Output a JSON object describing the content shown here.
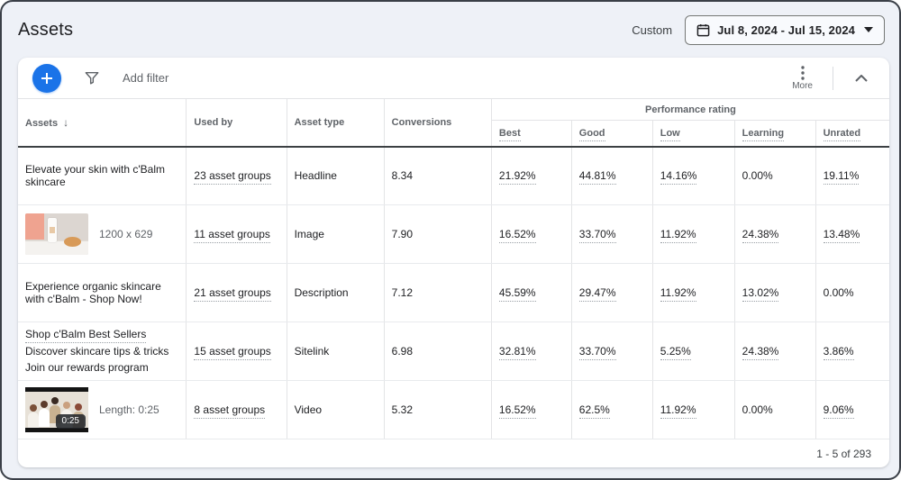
{
  "colors": {
    "accent": "#1a73e8",
    "text_primary": "#202124",
    "text_secondary": "#5f6368"
  },
  "page": {
    "title": "Assets"
  },
  "date_picker": {
    "preset_label": "Custom",
    "range": "Jul 8, 2024 - Jul 15, 2024",
    "calendar_icon": "calendar-icon",
    "dropdown_icon": "caret-down-icon"
  },
  "toolbar": {
    "add_icon": "plus-icon",
    "filter_icon": "funnel-icon",
    "add_filter_label": "Add filter",
    "more_icon": "kebab-vertical-icon",
    "more_label": "More",
    "collapse_icon": "chevron-up-icon"
  },
  "table": {
    "sort_icon": "↓",
    "sorted_column": "Assets",
    "columns": [
      "Assets",
      "Used by",
      "Asset type",
      "Conversions"
    ],
    "performance_group_label": "Performance rating",
    "performance_columns": [
      "Best",
      "Good",
      "Low",
      "Learning",
      "Unrated"
    ],
    "rows": [
      {
        "asset": {
          "kind": "text",
          "text": "Elevate your skin with c'Balm skincare"
        },
        "used_by": "23 asset groups",
        "asset_type": "Headline",
        "conversions": "8.34",
        "ratings": [
          {
            "v": "21.92%",
            "u": true
          },
          {
            "v": "44.81%",
            "u": true
          },
          {
            "v": "14.16%",
            "u": true
          },
          {
            "v": "0.00%",
            "u": false
          },
          {
            "v": "19.11%",
            "u": true
          }
        ]
      },
      {
        "asset": {
          "kind": "image",
          "thumb": "skincare-product-photo",
          "caption": "1200 x 629"
        },
        "used_by": "11 asset groups",
        "asset_type": "Image",
        "conversions": "7.90",
        "ratings": [
          {
            "v": "16.52%",
            "u": true
          },
          {
            "v": "33.70%",
            "u": true
          },
          {
            "v": "11.92%",
            "u": true
          },
          {
            "v": "24.38%",
            "u": true
          },
          {
            "v": "13.48%",
            "u": true
          }
        ]
      },
      {
        "asset": {
          "kind": "text",
          "text": "Experience organic skincare with c'Balm - Shop Now!"
        },
        "used_by": "21 asset groups",
        "asset_type": "Description",
        "conversions": "7.12",
        "ratings": [
          {
            "v": "45.59%",
            "u": true
          },
          {
            "v": "29.47%",
            "u": true
          },
          {
            "v": "11.92%",
            "u": true
          },
          {
            "v": "13.02%",
            "u": true
          },
          {
            "v": "0.00%",
            "u": false
          }
        ]
      },
      {
        "asset": {
          "kind": "sitelink",
          "link": "Shop c'Balm Best Sellers",
          "lines": [
            "Discover skincare tips & tricks",
            "Join our rewards program"
          ]
        },
        "used_by": "15 asset groups",
        "asset_type": "Sitelink",
        "conversions": "6.98",
        "ratings": [
          {
            "v": "32.81%",
            "u": true
          },
          {
            "v": "33.70%",
            "u": true
          },
          {
            "v": "5.25%",
            "u": true
          },
          {
            "v": "24.38%",
            "u": true
          },
          {
            "v": "3.86%",
            "u": true
          }
        ]
      },
      {
        "asset": {
          "kind": "video",
          "thumb": "video-women-group",
          "caption": "Length: 0:25",
          "duration_badge": "0:25"
        },
        "used_by": "8 asset groups",
        "asset_type": "Video",
        "conversions": "5.32",
        "ratings": [
          {
            "v": "16.52%",
            "u": true
          },
          {
            "v": "62.5%",
            "u": true
          },
          {
            "v": "11.92%",
            "u": true
          },
          {
            "v": "0.00%",
            "u": false
          },
          {
            "v": "9.06%",
            "u": true
          }
        ]
      }
    ]
  },
  "pagination": {
    "label": "1 - 5 of 293"
  }
}
